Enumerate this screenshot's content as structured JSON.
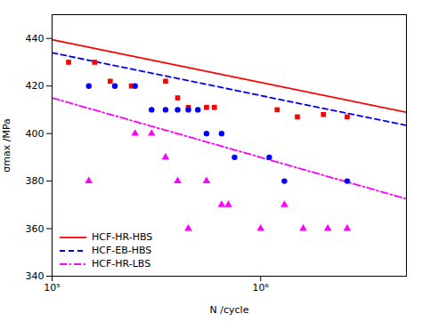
{
  "chart_data": {
    "type": "scatter",
    "xlabel": "N /cycle",
    "ylabel": "σmax /MPa",
    "log": "x",
    "grid": false,
    "legend": "lower left",
    "xlim": [
      100000,
      5000000
    ],
    "xticks": [
      {
        "value": 100000,
        "label": "10⁵"
      },
      {
        "value": 1000000,
        "label": "10⁶"
      }
    ],
    "ylim": [
      340,
      450
    ],
    "yticks": [
      340,
      360,
      380,
      400,
      420,
      440
    ],
    "series": [
      {
        "name": "HCF-HR-HBS",
        "type": "line",
        "color": "#ff0000",
        "line_style": "solid",
        "x": [
          100000,
          5000000
        ],
        "values": [
          439.5,
          408.91853992195166
        ]
      },
      {
        "name": "HCF-EB-HBS",
        "type": "line",
        "color": "#0000ff",
        "line_style": "dashed",
        "x": [
          100000,
          5000000
        ],
        "values": [
          434.0,
          403.41853992195166
        ]
      },
      {
        "name": "HCF-HR-LBS",
        "type": "line",
        "color": "#ff00ff",
        "line_style": "dashdot",
        "x": [
          100000,
          5000000
        ],
        "values": [
          415.0,
          372.5257498915995
        ]
      },
      {
        "type": "scatter",
        "color": "#ff0000",
        "marker": "square",
        "x": [
          120000,
          160000,
          190000,
          240000,
          350000,
          400000,
          450000,
          550000,
          600000,
          1200000,
          1500000,
          2000000,
          2600000
        ],
        "values": [
          430,
          430,
          422,
          420,
          422,
          415,
          411,
          411,
          411,
          410,
          407,
          408,
          407
        ]
      },
      {
        "type": "scatter",
        "color": "#0000ff",
        "marker": "circle",
        "x": [
          150000,
          200000,
          250000,
          300000,
          350000,
          400000,
          450000,
          500000,
          550000,
          650000,
          750000,
          1100000,
          1300000,
          2600000
        ],
        "values": [
          420,
          420,
          420,
          410,
          410,
          410,
          410,
          410,
          400,
          400,
          390,
          390,
          380,
          380
        ]
      },
      {
        "type": "scatter",
        "color": "#ff00ff",
        "marker": "triangle",
        "x": [
          150000,
          250000,
          300000,
          350000,
          400000,
          450000,
          550000,
          650000,
          700000,
          1000000,
          1300000,
          1600000,
          2100000,
          2600000
        ],
        "values": [
          380,
          400,
          400,
          390,
          380,
          360,
          380,
          370,
          370,
          360,
          370,
          360,
          360,
          360
        ]
      }
    ]
  }
}
